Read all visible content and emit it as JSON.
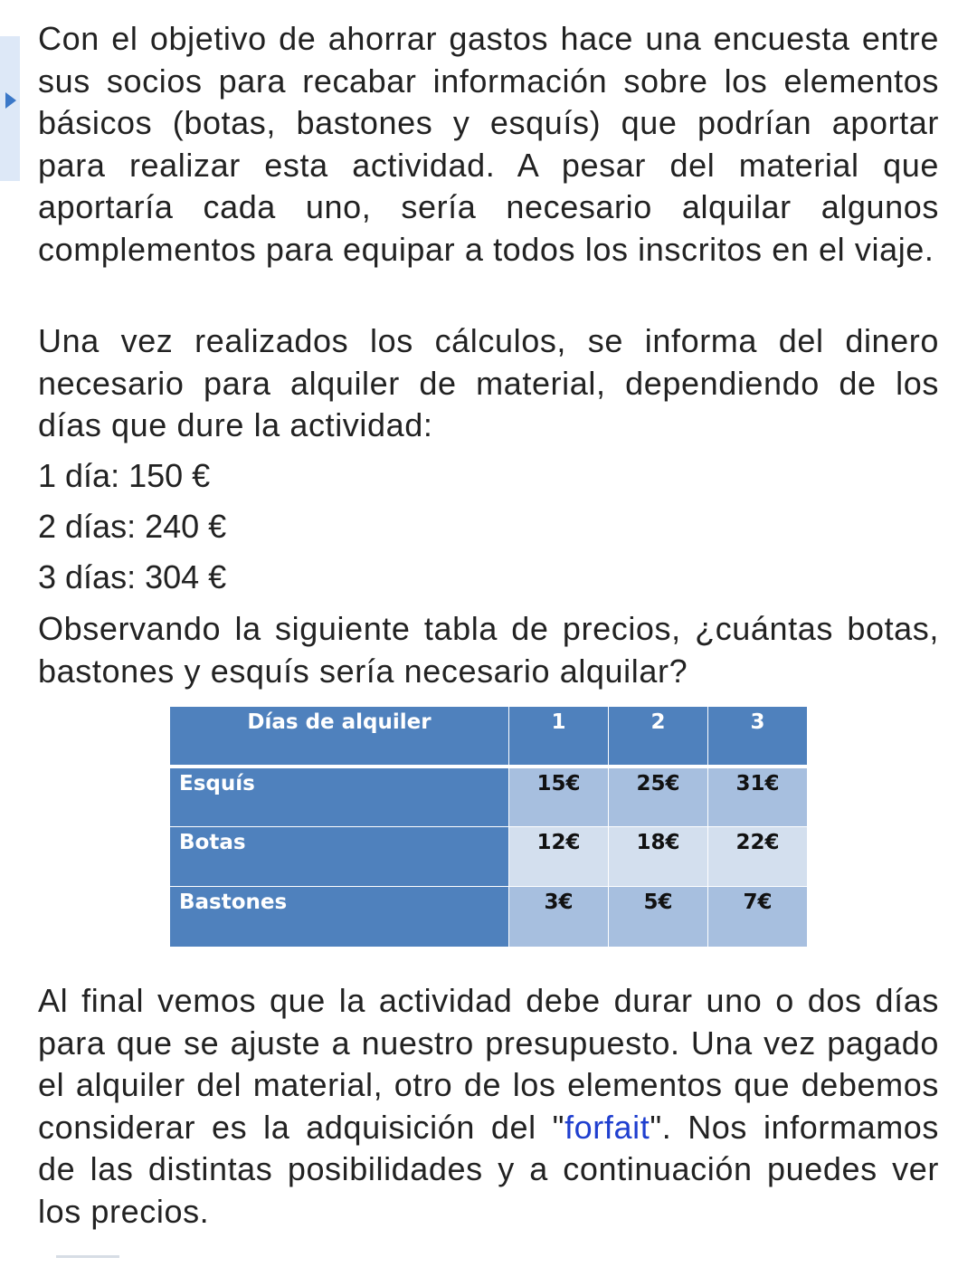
{
  "paragraphs": [
    "Con el objetivo de ahorrar gastos hace una encuesta entre sus socios para recabar información sobre los elementos básicos (botas, bastones y esquís)  que podrían aportar para realizar esta actividad. A pesar del material que aportaría cada uno, sería necesario alquilar algunos complementos para equipar a todos los inscritos en el viaje.",
    "Una vez realizados los cálculos, se informa del dinero necesario para alquiler de material, dependiendo de los días que dure la actividad:"
  ],
  "prices": [
    "1 día: 150 €",
    "2 días: 240 €",
    "3 días: 304 €"
  ],
  "question": "Observando la siguiente tabla de precios, ¿cuántas botas, bastones y esquís sería necesario alquilar?",
  "table": {
    "header": [
      "Días de alquiler",
      "1",
      "2",
      "3"
    ],
    "rows": [
      [
        "Esquís",
        "15€",
        "25€",
        "31€"
      ],
      [
        "Botas",
        "12€",
        "18€",
        "22€"
      ],
      [
        "Bastones",
        "3€",
        "5€",
        "7€"
      ]
    ]
  },
  "closing": {
    "before": "Al final vemos que la actividad debe durar uno o dos días para que se ajuste a nuestro presupuesto. Una vez pagado el alquiler del material, otro de los elementos que debemos considerar es la adquisición del \"",
    "link": "forfait",
    "after": "\". Nos informamos de las distintas posibilidades y a continuación puedes ver los precios."
  }
}
